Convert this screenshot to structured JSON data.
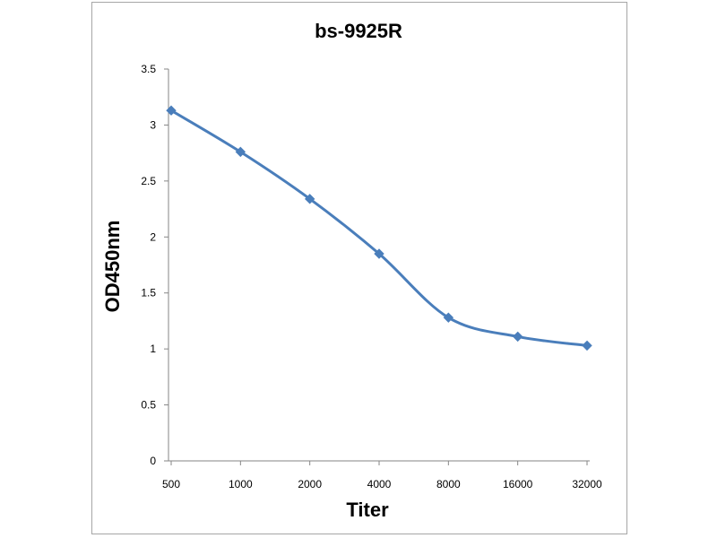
{
  "chart_data": {
    "type": "line",
    "title": "bs-9925R",
    "xlabel": "Titer",
    "ylabel": "OD450nm",
    "categories": [
      "500",
      "1000",
      "2000",
      "4000",
      "8000",
      "16000",
      "32000"
    ],
    "series": [
      {
        "values": [
          3.13,
          2.76,
          2.34,
          1.85,
          1.28,
          1.11,
          1.03
        ],
        "color": "#4a7ebb"
      }
    ],
    "yticks": [
      "0",
      "0.5",
      "1",
      "1.5",
      "2",
      "2.5",
      "3",
      "3.5"
    ],
    "ylim": [
      0,
      3.5
    ],
    "grid": false,
    "legend": "none",
    "line_style": "smooth",
    "marker": "diamond"
  }
}
